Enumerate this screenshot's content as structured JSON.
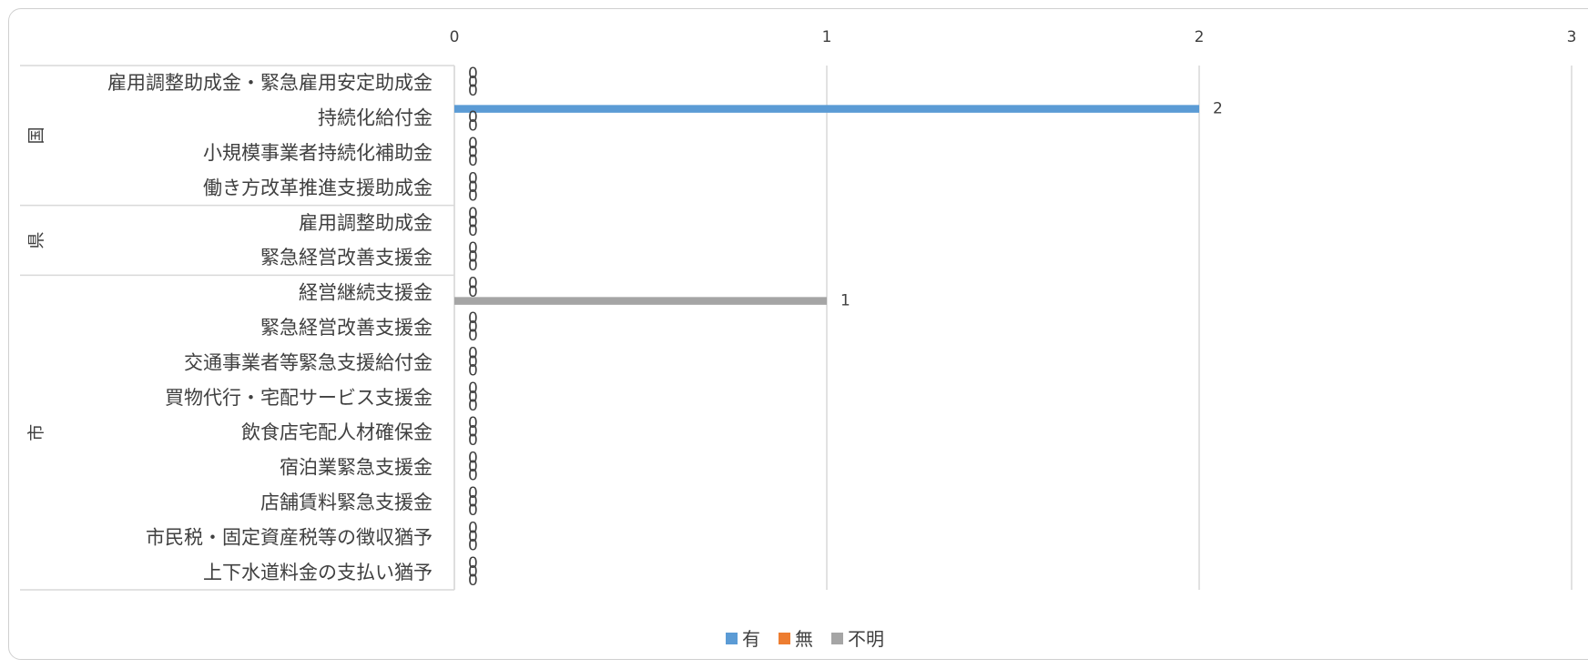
{
  "chart_data": {
    "type": "bar",
    "orientation": "horizontal",
    "title": "",
    "xlim": [
      0,
      3
    ],
    "x_ticks": [
      0,
      1,
      2,
      3
    ],
    "x_tick_labels": [
      "0",
      "1",
      "2",
      "3"
    ],
    "x_axis_position": "top",
    "grid": true,
    "legend_position": "bottom",
    "groups": [
      {
        "name": "国",
        "categories": [
          "雇用調整助成金・緊急雇用安定助成金",
          "持続化給付金",
          "小規模事業者持続化補助金",
          "働き方改革推進支援助成金"
        ]
      },
      {
        "name": "県",
        "categories": [
          "雇用調整助成金",
          "緊急経営改善支援金"
        ]
      },
      {
        "name": "市",
        "categories": [
          "経営継続支援金",
          "緊急経営改善支援金",
          "交通事業者等緊急支援給付金",
          "買物代行・宅配サービス支援金",
          "飲食店宅配人材確保金",
          "宿泊業緊急支援金",
          "店舗賃料緊急支援金",
          "市民税・固定資産税等の徴収猶予",
          "上下水道料金の支払い猶予"
        ]
      }
    ],
    "series": [
      {
        "name": "有",
        "color": "#5b9bd5",
        "values": [
          0,
          2,
          0,
          0,
          0,
          0,
          0,
          0,
          0,
          0,
          0,
          0,
          0,
          0,
          0
        ]
      },
      {
        "name": "無",
        "color": "#ed7d31",
        "values": [
          0,
          0,
          0,
          0,
          0,
          0,
          0,
          0,
          0,
          0,
          0,
          0,
          0,
          0,
          0
        ]
      },
      {
        "name": "不明",
        "color": "#a5a5a5",
        "values": [
          0,
          0,
          0,
          0,
          0,
          0,
          1,
          0,
          0,
          0,
          0,
          0,
          0,
          0,
          0
        ]
      }
    ]
  }
}
